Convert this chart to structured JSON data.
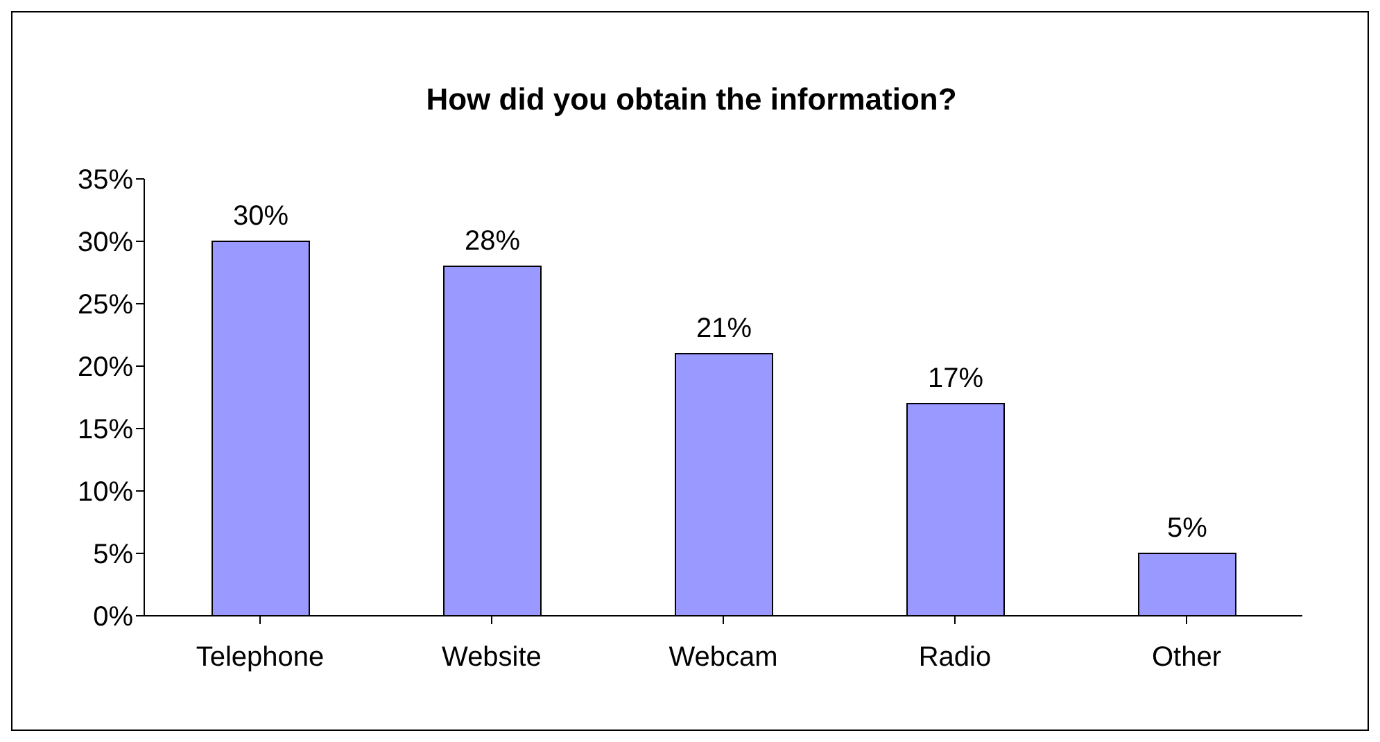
{
  "chart_data": {
    "type": "bar",
    "title": "How did you obtain the information?",
    "categories": [
      "Telephone",
      "Website",
      "Webcam",
      "Radio",
      "Other"
    ],
    "values": [
      30,
      28,
      21,
      17,
      5
    ],
    "value_labels": [
      "30%",
      "28%",
      "21%",
      "17%",
      "5%"
    ],
    "color": "#9999ff",
    "ylim": [
      0,
      35
    ],
    "yticks": [
      {
        "value": 0,
        "label": "0%"
      },
      {
        "value": 5,
        "label": "5%"
      },
      {
        "value": 10,
        "label": "10%"
      },
      {
        "value": 15,
        "label": "15%"
      },
      {
        "value": 20,
        "label": "20%"
      },
      {
        "value": 25,
        "label": "25%"
      },
      {
        "value": 30,
        "label": "30%"
      },
      {
        "value": 35,
        "label": "35%"
      }
    ],
    "grid": false,
    "legend": false
  }
}
